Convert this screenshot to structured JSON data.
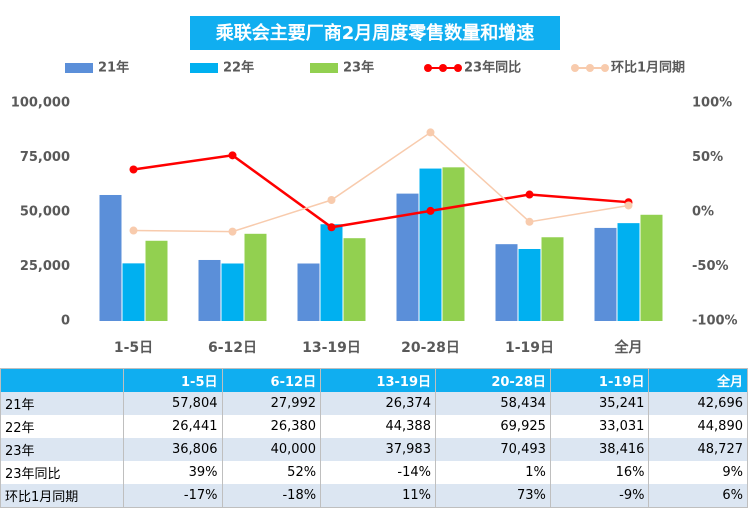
{
  "chart_data": {
    "type": "bar",
    "title": "乘联会主要厂商2月周度零售数量和增速",
    "categories": [
      "1-5日",
      "6-12日",
      "13-19日",
      "20-28日",
      "1-19日",
      "全月"
    ],
    "series": [
      {
        "name": "21年",
        "color": "#5b8fd9",
        "values": [
          57804,
          27992,
          26374,
          58434,
          35241,
          42696
        ],
        "value_labels": [
          "57,804",
          "27,992",
          "26,374",
          "58,434",
          "35,241",
          "42,696"
        ]
      },
      {
        "name": "22年",
        "color": "#00b0f0",
        "values": [
          26441,
          26380,
          44388,
          69925,
          33031,
          44890
        ],
        "value_labels": [
          "26,441",
          "26,380",
          "44,388",
          "69,925",
          "33,031",
          "44,890"
        ]
      },
      {
        "name": "23年",
        "color": "#92d050",
        "values": [
          36806,
          40000,
          37983,
          70493,
          38416,
          48727
        ],
        "value_labels": [
          "36,806",
          "40,000",
          "37,983",
          "70,493",
          "38,416",
          "48,727"
        ]
      },
      {
        "name": "23年同比",
        "type": "line",
        "axis": "y2",
        "color": "#ff0000",
        "values": [
          39,
          52,
          -14,
          1,
          16,
          9
        ],
        "value_labels": [
          "39%",
          "52%",
          "-14%",
          "1%",
          "16%",
          "9%"
        ]
      },
      {
        "name": "环比1月同期",
        "type": "line",
        "axis": "y2",
        "color": "#f8cbad",
        "values": [
          -17,
          -18,
          11,
          73,
          -9,
          6
        ],
        "value_labels": [
          "-17%",
          "-18%",
          "11%",
          "73%",
          "-9%",
          "6%"
        ]
      }
    ],
    "ylim": [
      0,
      100000
    ],
    "yticks": [
      0,
      {
        "value": 25000,
        "label": "25,000"
      },
      {
        "value": 50000,
        "label": "50,000"
      },
      {
        "value": 75000,
        "label": "75,000"
      },
      {
        "value": 100000,
        "label": "100,000"
      }
    ],
    "y2lim": [
      -100,
      100
    ],
    "y2ticks": [
      {
        "value": -100,
        "label": "-100%"
      },
      {
        "value": -50,
        "label": "-50%"
      },
      {
        "value": 0,
        "label": "0%"
      },
      {
        "value": 50,
        "label": "50%"
      },
      {
        "value": 100,
        "label": "100%"
      }
    ]
  }
}
